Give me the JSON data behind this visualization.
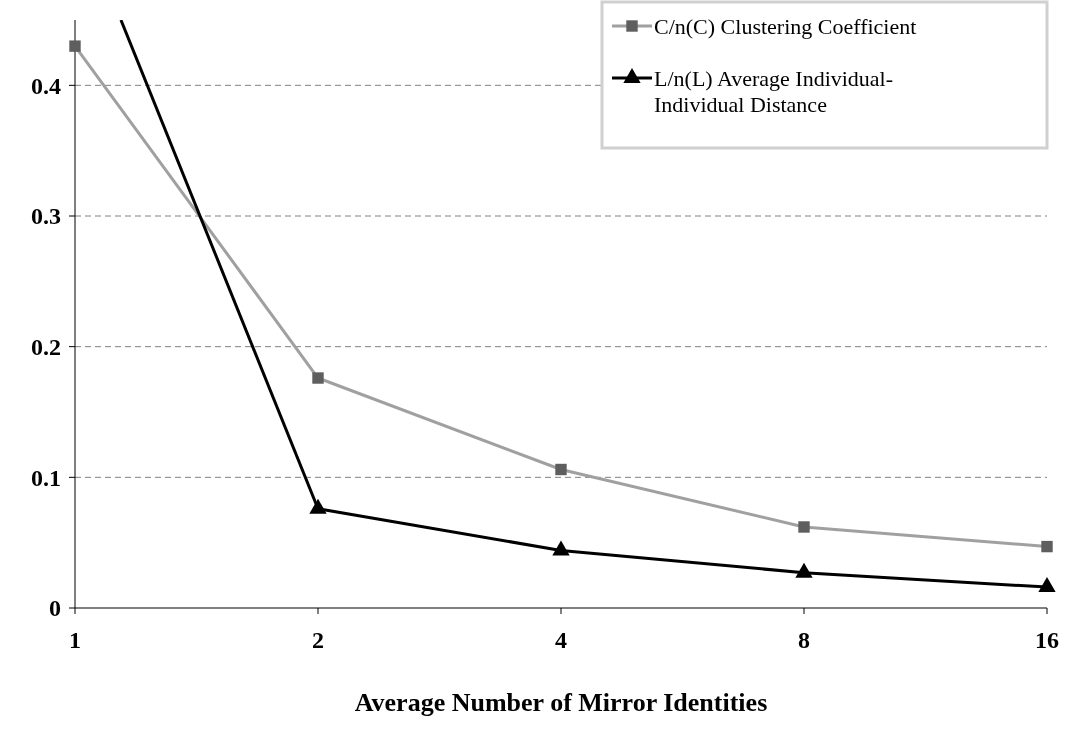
{
  "chart_data": {
    "type": "line",
    "xlabel": "Average Number of Mirror Identities",
    "x": [
      1,
      2,
      4,
      8,
      16
    ],
    "series": [
      {
        "name": "C/n(C) Clustering Coefficient",
        "color": "#a0a0a0",
        "marker": "square",
        "values": [
          0.43,
          0.176,
          0.106,
          0.062,
          0.047
        ]
      },
      {
        "name": "L/n(L) Average Individual-Individual Distance",
        "color": "#000000",
        "marker": "triangle",
        "x": [
          2,
          4,
          8,
          16
        ],
        "values": [
          0.076,
          0.044,
          0.027,
          0.016
        ]
      },
      {
        "color": "#000000",
        "marker": "none",
        "x": [
          1.14,
          2
        ],
        "values": [
          0.45,
          0.076
        ]
      }
    ],
    "xlim": [
      1,
      16
    ],
    "xticks": [
      1,
      2,
      4,
      8,
      16
    ],
    "log": "x",
    "ylim": [
      0,
      0.45
    ],
    "yticks": [
      0,
      0.1,
      0.2,
      0.3,
      0.4
    ],
    "grid": "y",
    "legend": "top right",
    "line_style": "solid"
  }
}
